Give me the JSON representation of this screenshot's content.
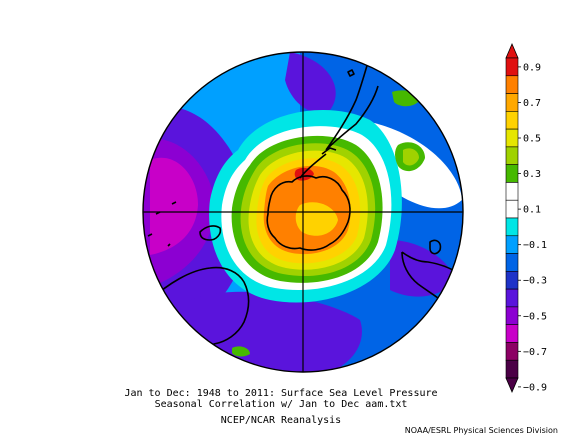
{
  "caption": {
    "line1": "Jan to Dec: 1948 to 2011: Surface Sea Level Pressure",
    "line2": "Seasonal Correlation w/ Jan to Dec aam.txt",
    "line3": "NCEP/NCAR Reanalysis"
  },
  "credit": "NOAA/ESRL Physical Sciences Division",
  "colorbar": {
    "ticks": [
      "0.9",
      "0.7",
      "0.5",
      "0.3",
      "0.1",
      "−0.1",
      "−0.3",
      "−0.5",
      "−0.7",
      "−0.9"
    ],
    "colors": [
      "#e01010",
      "#ff8000",
      "#ffa800",
      "#ffd200",
      "#e6e600",
      "#a0d200",
      "#46b900",
      "#ffffff",
      "#ffffff",
      "#00e6e6",
      "#00a0ff",
      "#0064e6",
      "#1e32c8",
      "#5a14dc",
      "#8c00d2",
      "#c800c8",
      "#8c0064",
      "#4b0046"
    ]
  },
  "map": {
    "projection": "polar stereographic, South Pole",
    "field": "correlation",
    "colors": {
      "red": "#e01010",
      "orange": "#ff8000",
      "yellow_orange": "#ffa800",
      "yellow": "#ffd200",
      "yellow_green": "#e6e600",
      "light_green": "#a0d200",
      "green": "#46b900",
      "white": "#ffffff",
      "cyan": "#00e6e6",
      "light_blue": "#00a0ff",
      "blue": "#0064e6",
      "dark_blue": "#1e32c8",
      "violet": "#5a14dc",
      "purple": "#8c00d2",
      "magenta": "#c800c8"
    }
  }
}
